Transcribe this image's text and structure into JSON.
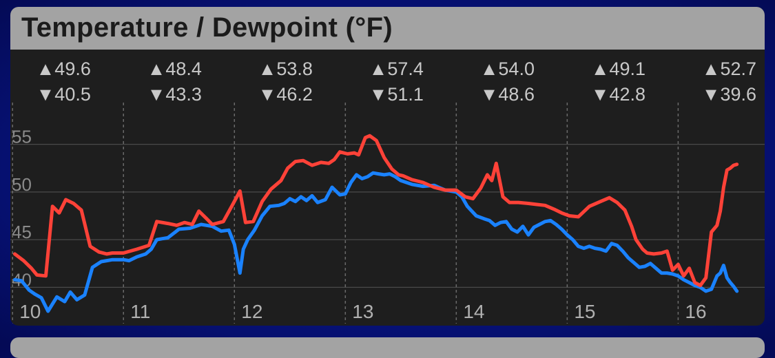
{
  "title": "Temperature / Dewpoint (°F)",
  "colors": {
    "temperature": "#ff4238",
    "dewpoint": "#1a82ff",
    "header_bg": "#a3a3a3",
    "panel_bg": "#1e1e1e"
  },
  "chart_data": {
    "type": "line",
    "title": "Temperature / Dewpoint (°F)",
    "x_unit": "day",
    "xlim": [
      9.98,
      16.78
    ],
    "ylim": [
      36.2,
      58.8
    ],
    "y_ticks": [
      40,
      45,
      50,
      55
    ],
    "x_ticks": [
      10,
      11,
      12,
      13,
      14,
      15,
      16
    ],
    "grid": true,
    "daily_max": [
      "▲49.6",
      "▲48.4",
      "▲53.8",
      "▲57.4",
      "▲54.0",
      "▲49.1",
      "▲52.7"
    ],
    "daily_min": [
      "▼40.5",
      "▼43.3",
      "▼46.2",
      "▼51.1",
      "▼48.6",
      "▼42.8",
      "▼39.6"
    ],
    "series": [
      {
        "color": "#ff4238",
        "x": [
          10.02,
          10.1,
          10.17,
          10.22,
          10.3,
          10.36,
          10.42,
          10.48,
          10.55,
          10.62,
          10.7,
          10.78,
          10.85,
          10.9,
          11.0,
          11.12,
          11.23,
          11.3,
          11.4,
          11.48,
          11.55,
          11.62,
          11.68,
          11.75,
          11.8,
          11.9,
          11.98,
          12.05,
          12.1,
          12.17,
          12.25,
          12.33,
          12.42,
          12.48,
          12.55,
          12.62,
          12.7,
          12.78,
          12.85,
          12.9,
          12.95,
          13.02,
          13.08,
          13.12,
          13.18,
          13.22,
          13.28,
          13.35,
          13.42,
          13.48,
          13.52,
          13.6,
          13.7,
          13.8,
          13.9,
          14.0,
          14.08,
          14.15,
          14.22,
          14.28,
          14.32,
          14.36,
          14.42,
          14.48,
          14.56,
          14.65,
          14.72,
          14.8,
          14.88,
          14.95,
          15.02,
          15.1,
          15.2,
          15.3,
          15.38,
          15.45,
          15.52,
          15.58,
          15.62,
          15.68,
          15.72,
          15.78,
          15.85,
          15.9,
          15.95,
          16.0,
          16.05,
          16.1,
          16.15,
          16.2,
          16.25,
          16.3,
          16.35,
          16.38,
          16.41,
          16.44,
          16.47,
          16.5,
          16.53
        ],
        "y": [
          43.5,
          42.8,
          42,
          41.3,
          41.2,
          48.5,
          47.8,
          49.2,
          48.8,
          48.1,
          44.3,
          43.7,
          43.5,
          43.6,
          43.6,
          44,
          44.4,
          46.9,
          46.7,
          46.5,
          46.8,
          46.6,
          48,
          47.2,
          46.6,
          46.9,
          48.6,
          50.1,
          46.8,
          46.9,
          49,
          50.3,
          51.2,
          52.5,
          53.2,
          53.3,
          52.8,
          53.1,
          53,
          53.4,
          54.2,
          54,
          54.1,
          53.9,
          55.7,
          55.9,
          55.4,
          53.6,
          52.4,
          51.8,
          51.7,
          51.3,
          51,
          50.5,
          50.2,
          50.2,
          49.5,
          49.3,
          50.4,
          51.8,
          51.2,
          53,
          49.5,
          48.9,
          48.9,
          48.8,
          48.7,
          48.6,
          48.2,
          47.8,
          47.5,
          47.4,
          48.5,
          49,
          49.4,
          48.9,
          48.1,
          46.4,
          45,
          44,
          43.6,
          43.5,
          43.6,
          43.8,
          41.8,
          42.4,
          41.2,
          42,
          40.5,
          40.2,
          41,
          45.8,
          46.5,
          48,
          50.5,
          52.3,
          52.5,
          52.8,
          52.9
        ]
      },
      {
        "color": "#1a82ff",
        "x": [
          10.02,
          10.08,
          10.15,
          10.2,
          10.26,
          10.32,
          10.4,
          10.47,
          10.52,
          10.58,
          10.65,
          10.72,
          10.8,
          10.85,
          10.9,
          11.0,
          11.05,
          11.12,
          11.2,
          11.25,
          11.3,
          11.35,
          11.4,
          11.5,
          11.6,
          11.7,
          11.8,
          11.88,
          11.95,
          12.0,
          12.05,
          12.08,
          12.12,
          12.18,
          12.25,
          12.32,
          12.4,
          12.45,
          12.5,
          12.55,
          12.6,
          12.65,
          12.7,
          12.75,
          12.82,
          12.88,
          12.95,
          13.0,
          13.05,
          13.1,
          13.15,
          13.2,
          13.25,
          13.3,
          13.35,
          13.4,
          13.45,
          13.5,
          13.6,
          13.7,
          13.8,
          13.9,
          14.0,
          14.05,
          14.1,
          14.18,
          14.25,
          14.3,
          14.35,
          14.4,
          14.45,
          14.5,
          14.55,
          14.6,
          14.65,
          14.7,
          14.75,
          14.8,
          14.85,
          14.9,
          14.95,
          15.0,
          15.05,
          15.1,
          15.15,
          15.2,
          15.25,
          15.3,
          15.35,
          15.4,
          15.45,
          15.5,
          15.55,
          15.6,
          15.65,
          15.7,
          15.75,
          15.8,
          15.85,
          15.9,
          15.95,
          16.0,
          16.05,
          16.1,
          16.15,
          16.2,
          16.25,
          16.3,
          16.35,
          16.38,
          16.41,
          16.44,
          16.47,
          16.5,
          16.53
        ],
        "y": [
          40.8,
          40.7,
          39.7,
          39.3,
          38.9,
          37.5,
          39,
          38.5,
          39.5,
          38.7,
          39.2,
          42.1,
          42.7,
          42.8,
          42.9,
          42.9,
          42.8,
          43.2,
          43.5,
          44,
          45,
          45.1,
          45.2,
          46.1,
          46.2,
          46.6,
          46.4,
          45.9,
          46,
          44.5,
          41.5,
          44,
          45,
          46,
          47.5,
          48.5,
          48.6,
          48.8,
          49.3,
          49,
          49.5,
          49.1,
          49.6,
          48.9,
          49.2,
          50.5,
          49.7,
          49.8,
          51,
          51.8,
          51.4,
          51.6,
          52,
          51.9,
          51.8,
          51.9,
          51.6,
          51.2,
          50.8,
          50.6,
          50.7,
          50.2,
          50,
          49.5,
          48.5,
          47.5,
          47.2,
          47,
          46.5,
          46.8,
          46.9,
          46.1,
          45.8,
          46.4,
          45.5,
          46.3,
          46.6,
          46.9,
          47,
          46.6,
          46.1,
          45.5,
          45,
          44.3,
          44.1,
          44.3,
          44.1,
          44,
          43.8,
          44.6,
          44.4,
          43.8,
          43.1,
          42.6,
          42.1,
          42.2,
          42.5,
          42,
          41.5,
          41.5,
          41.4,
          41.2,
          40.8,
          40.5,
          40.2,
          40,
          39.6,
          39.8,
          41.2,
          41.5,
          42.3,
          41,
          40.5,
          40.1,
          39.6
        ]
      }
    ]
  }
}
